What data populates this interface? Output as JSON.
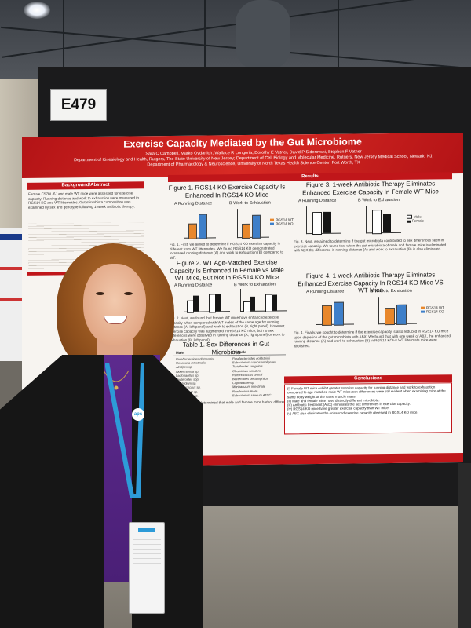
{
  "booth": {
    "label": "E479"
  },
  "poster": {
    "title": "Exercise Capacity Mediated by the Gut Microbiome",
    "authors": "Sara C Campbell, Marko Oydanich, Wallace R Longoria, Dorothy E Vatner, David P Siderovski, Stephen F Vatner",
    "affiliations": "Department of Kinesiology and Health, Rutgers, The State University of New Jersey; Department of Cell Biology and Molecular Medicine, Rutgers, New Jersey Medical School, Newark, NJ; Department of Pharmacology & Neuroscience, University of North Texas Health Science Center, Fort Worth, TX",
    "sections": {
      "background": "Background/Abstract",
      "results": "Results",
      "conclusions": "Conclusions"
    },
    "background_text": "Female C57BL/6J and male WT mice were assessed for exercise capacity. Running distance and work to exhaustion were measured in RGS14 KO and WT littermates. Gut microbiota composition was examined by sex and genotype following 1-week antibiotic therapy.",
    "fig1": {
      "title": "Figure 1. RGS14 KO Exercise Capacity Is Enhanced In RGS14 KO Mice",
      "panel_a": "A  Running Distance",
      "panel_b": "B  Work to Exhaustion",
      "legend_wt": "RGS14 WT",
      "legend_ko": "RGS14 KO",
      "caption": "Fig. 1. First, we aimed to determine if RGS14 KO exercise capacity is different from WT littermates. We found RGS14 KO demonstrated increased running distance (A) and work to exhaustion (B) compared to WT."
    },
    "fig2": {
      "title": "Figure 2. WT Age-Matched Exercise Capacity Is Enhanced In Female vs Male WT Mice, But Not In RGS14 KO Mice",
      "panel_a": "A  Running Distance",
      "panel_b": "B  Work to Exhaustion",
      "caption": "Fig. 2. Next, we found that female WT mice have enhanced exercise capacity when compared with WT males of the same age for running distance (A, left panel) and work to exhaustion (B, right panel). However, exercise capacity was augmented in RGS14 KO mice, but no sex differences were observed in running distance (A, right panel) or work to exhaustion (B, left panel)."
    },
    "table1": {
      "title": "Table 1. Sex Differences in Gut Microbiota",
      "col_male": "Male",
      "col_female": "Female",
      "rows": [
        {
          "male": "Parabacteroides distasonis",
          "female": "Parabacteroides goldsteinii"
        },
        {
          "male": "Roseburia intestinalis",
          "female": "Eubacterium coprostanoligenes"
        },
        {
          "male": "Alistipes sp.",
          "female": "Turicibacter sanguinis"
        },
        {
          "male": "Akkermansia sp.",
          "female": "Clostridium scindens"
        },
        {
          "male": "Lactobacillus sp.",
          "female": "Ruminococcus bromii"
        },
        {
          "male": "Bacteroides spp.",
          "female": "Bacteroides pectinophilus"
        },
        {
          "male": "Clostridium sp.",
          "female": "Coprobacter sp."
        },
        {
          "male": "Streptococcus sp.",
          "female": "Muribaculum intestinale"
        },
        {
          "male": "Oscillibacter sp.",
          "female": "Romboutsia ilealis"
        },
        {
          "male": "Acetatifactor sp.",
          "female": "Eubacterium siraeum ATCC"
        }
      ],
      "caption": "Table 1. Next, we determined that male and female mice harbor different gut microbiota."
    },
    "fig3": {
      "title": "Figure 3.  1-week Antibiotic Therapy Eliminates Enhanced Exercise Capacity In Female WT Mice",
      "panel_a": "A  Running Distance",
      "panel_b": "B  Work to Exhaustion",
      "legend_male": "Male",
      "legend_female": "Female",
      "caption": "Fig. 3. Next, we aimed to determine if the gut microbiota contributed to sex differences seen in exercise capacity. We found that when the gut microbiota of male and female mice is eliminated with ABX the difference in running distance (A) and work to exhaustion (B) is also eliminated."
    },
    "fig4": {
      "title": "Figure 4.  1-week Antibiotic Therapy Eliminates Enhanced Exercise Capacity In RGS14 KO Mice VS WT Mice",
      "panel_a": "A  Running Distance",
      "panel_b": "B  Work to Exhaustion",
      "legend_wt": "RGS14 WT",
      "legend_ko": "RGS14 KO",
      "caption": "Fig. 4. Finally, we sought to determine if the exercise capacity is also reduced in RGS14 KO mice upon depletion of the gut microbiota with ABX. We found that with one week of ABX, the enhanced running distance (A) and work to exhaustion (B) in RGS14 KO vs WT littermate mice were abolished."
    },
    "conclusions": [
      "(i) Female WT mice exhibit greater exercise capacity for running distance and work to exhaustion compared to age-matched male WT mice; sex differences were still evident when examining mice at the same body weight or the same muscle mass.",
      "(ii) Male and female mice have distinctly different microbiota.",
      "(iii) Antibiotic treatment (ABX) eliminates the sex differences in exercise capacity.",
      "(iv) RGS14 KO mice have greater exercise capacity than WT mice.",
      "(v) ABX also eliminates the enhanced exercise capacity observed in RGS14 KO mice."
    ]
  },
  "badge": {
    "brand": "aps"
  },
  "colors": {
    "poster_red": "#c0161a",
    "bar_orange": "#e8872b",
    "bar_blue": "#3e7fc9",
    "shirt_purple": "#5d2a8e",
    "lanyard_blue": "#2d9bd8"
  }
}
